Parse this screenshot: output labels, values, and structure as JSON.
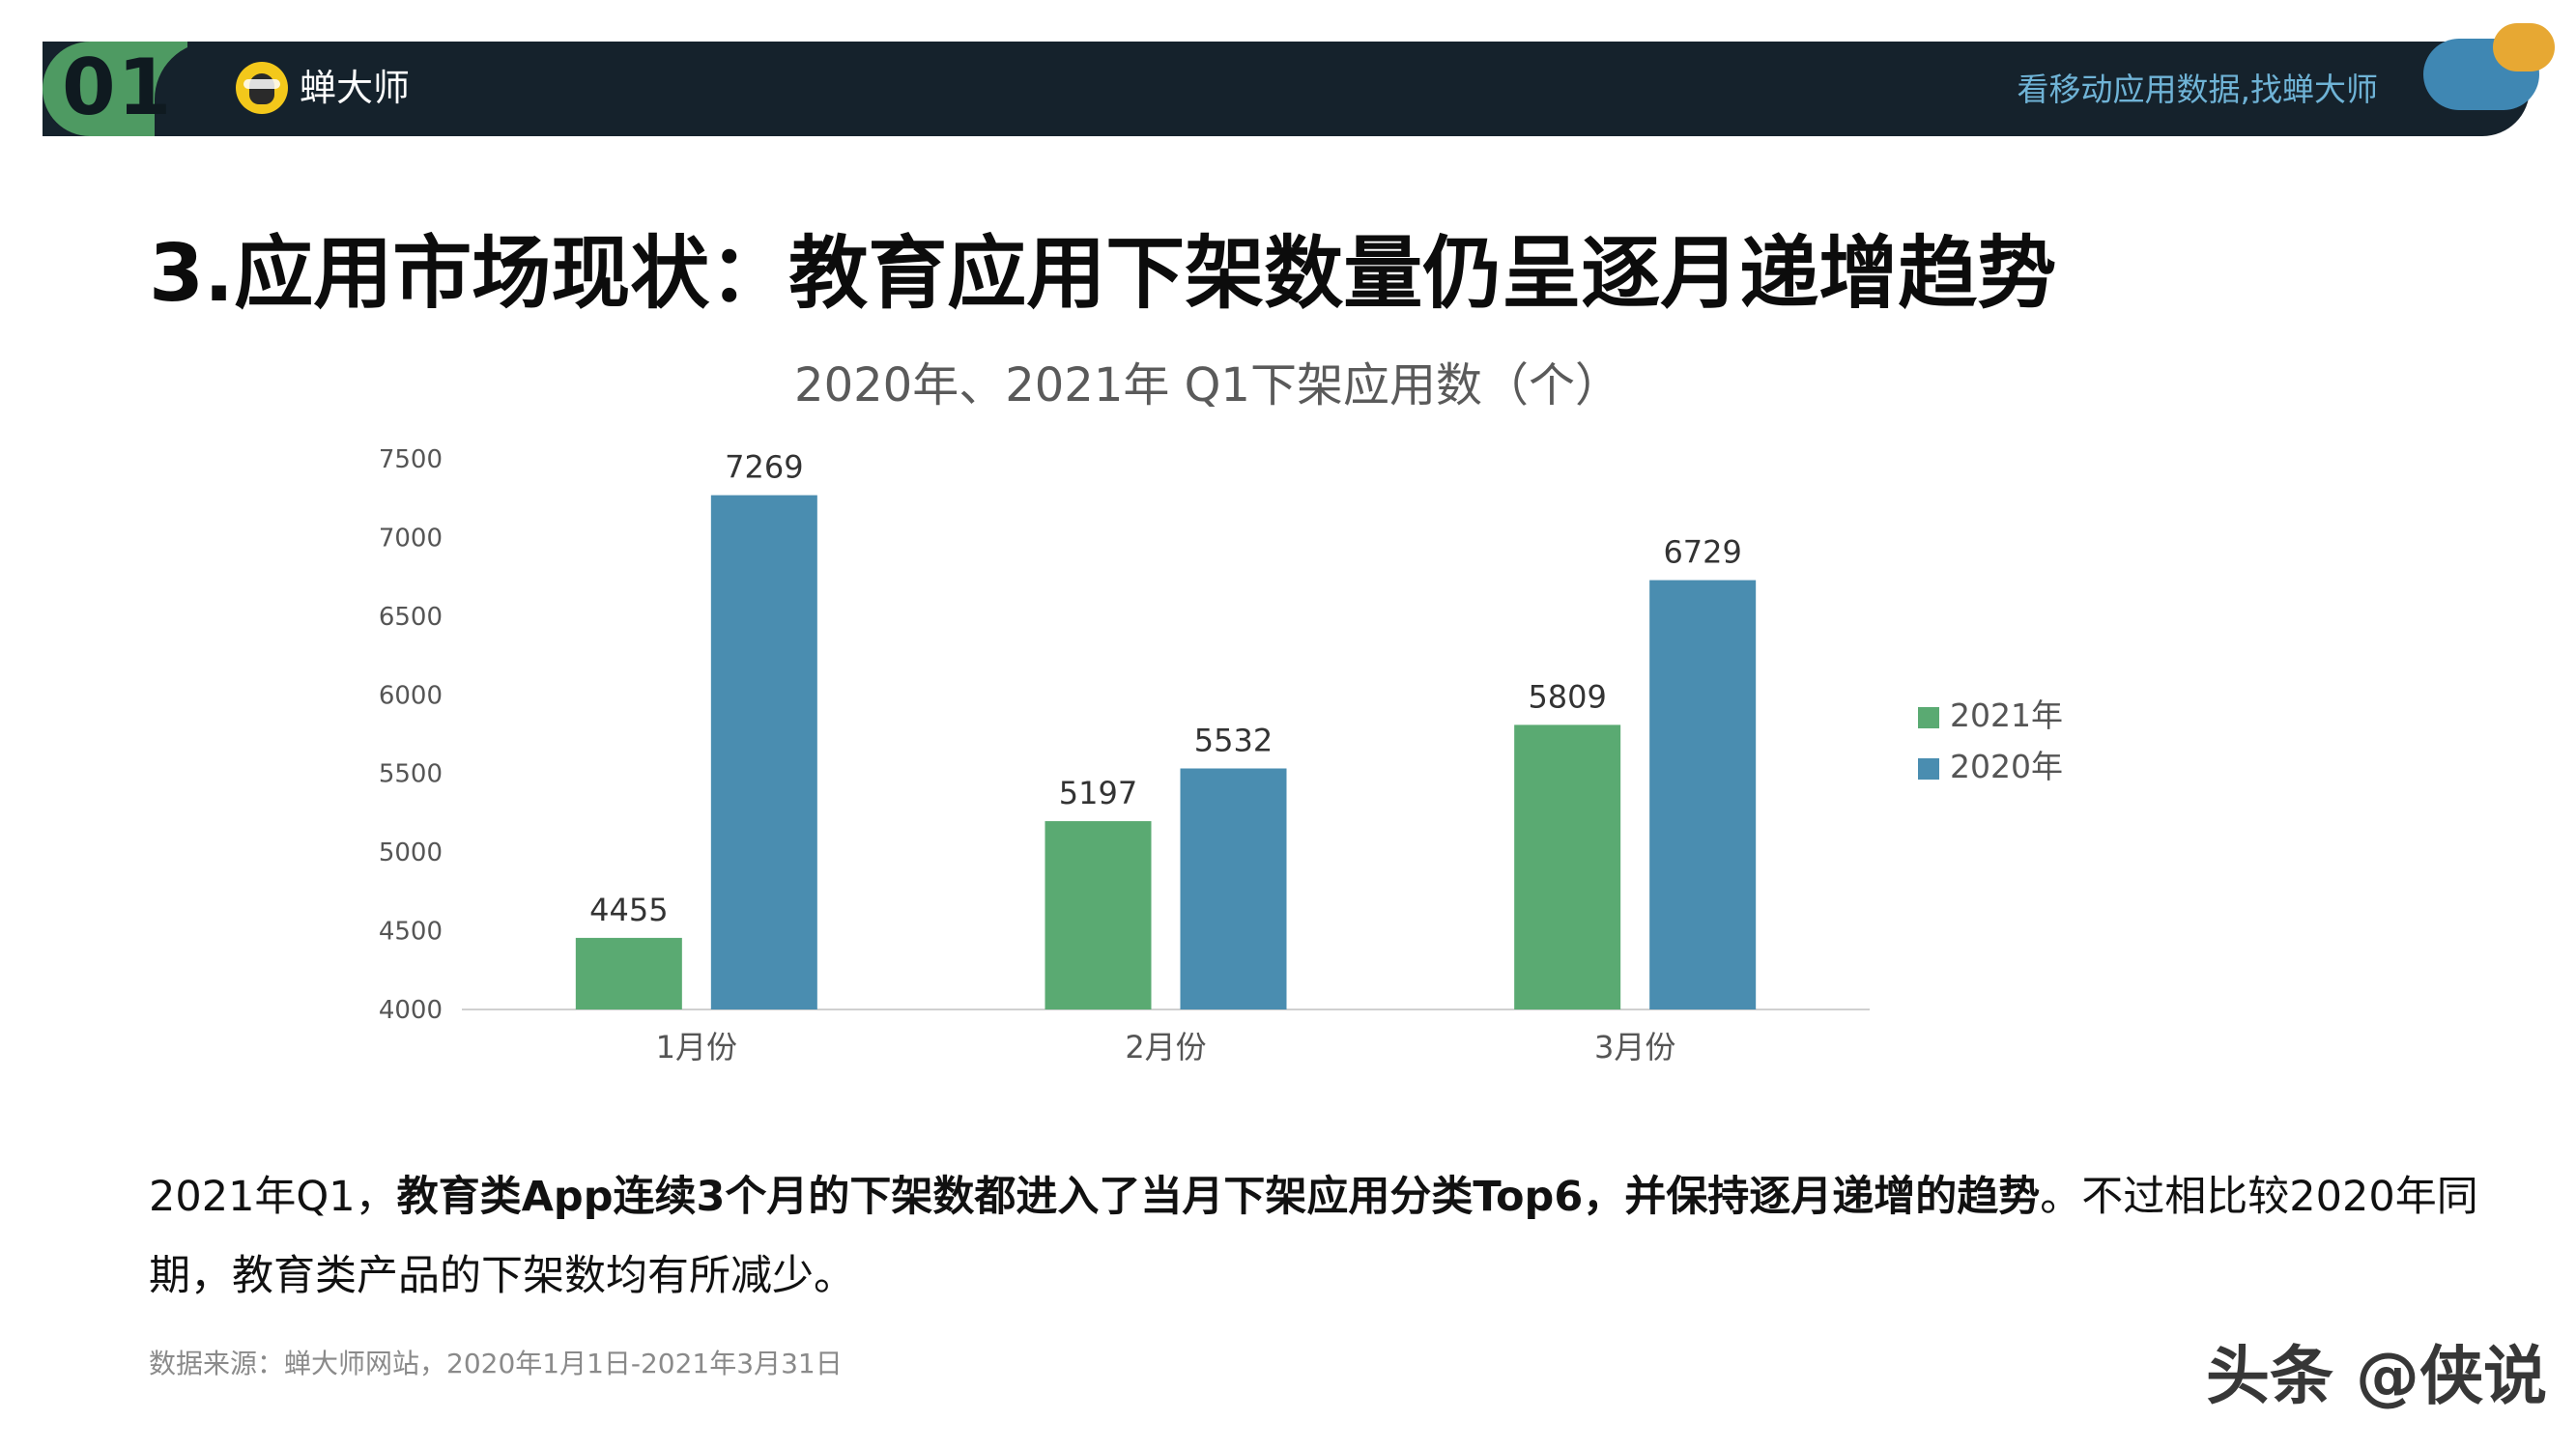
{
  "header": {
    "section_number": "01",
    "brand": "蝉大师",
    "slogan": "看移动应用数据,找蝉大师"
  },
  "page_title": "3.应用市场现状：教育应用下架数量仍呈逐月递增趋势",
  "chart_data": {
    "type": "bar",
    "title": "2020年、2021年 Q1下架应用数（个）",
    "categories": [
      "1月份",
      "2月份",
      "3月份"
    ],
    "series": [
      {
        "name": "2021年",
        "values": [
          4455,
          5197,
          5809
        ],
        "color": "#5aaa72"
      },
      {
        "name": "2020年",
        "values": [
          7269,
          5532,
          6729
        ],
        "color": "#4a8db0"
      }
    ],
    "ylim": [
      4000,
      7500
    ],
    "yticks": [
      4000,
      4500,
      5000,
      5500,
      6000,
      6500,
      7000,
      7500
    ],
    "grid": false,
    "legend": "right",
    "xlabel": "",
    "ylabel": ""
  },
  "description": {
    "prefix": "2021年Q1，",
    "bold": "教育类App连续3个月的下架数都进入了当月下架应用分类Top6，并保持逐月递增的趋势",
    "suffix": "。不过相比较2020年同期，教育类产品的下架数均有所减少。"
  },
  "source_note": "数据来源：蝉大师网站，2020年1月1日-2021年3月31日",
  "watermark": "头条 @侠说"
}
